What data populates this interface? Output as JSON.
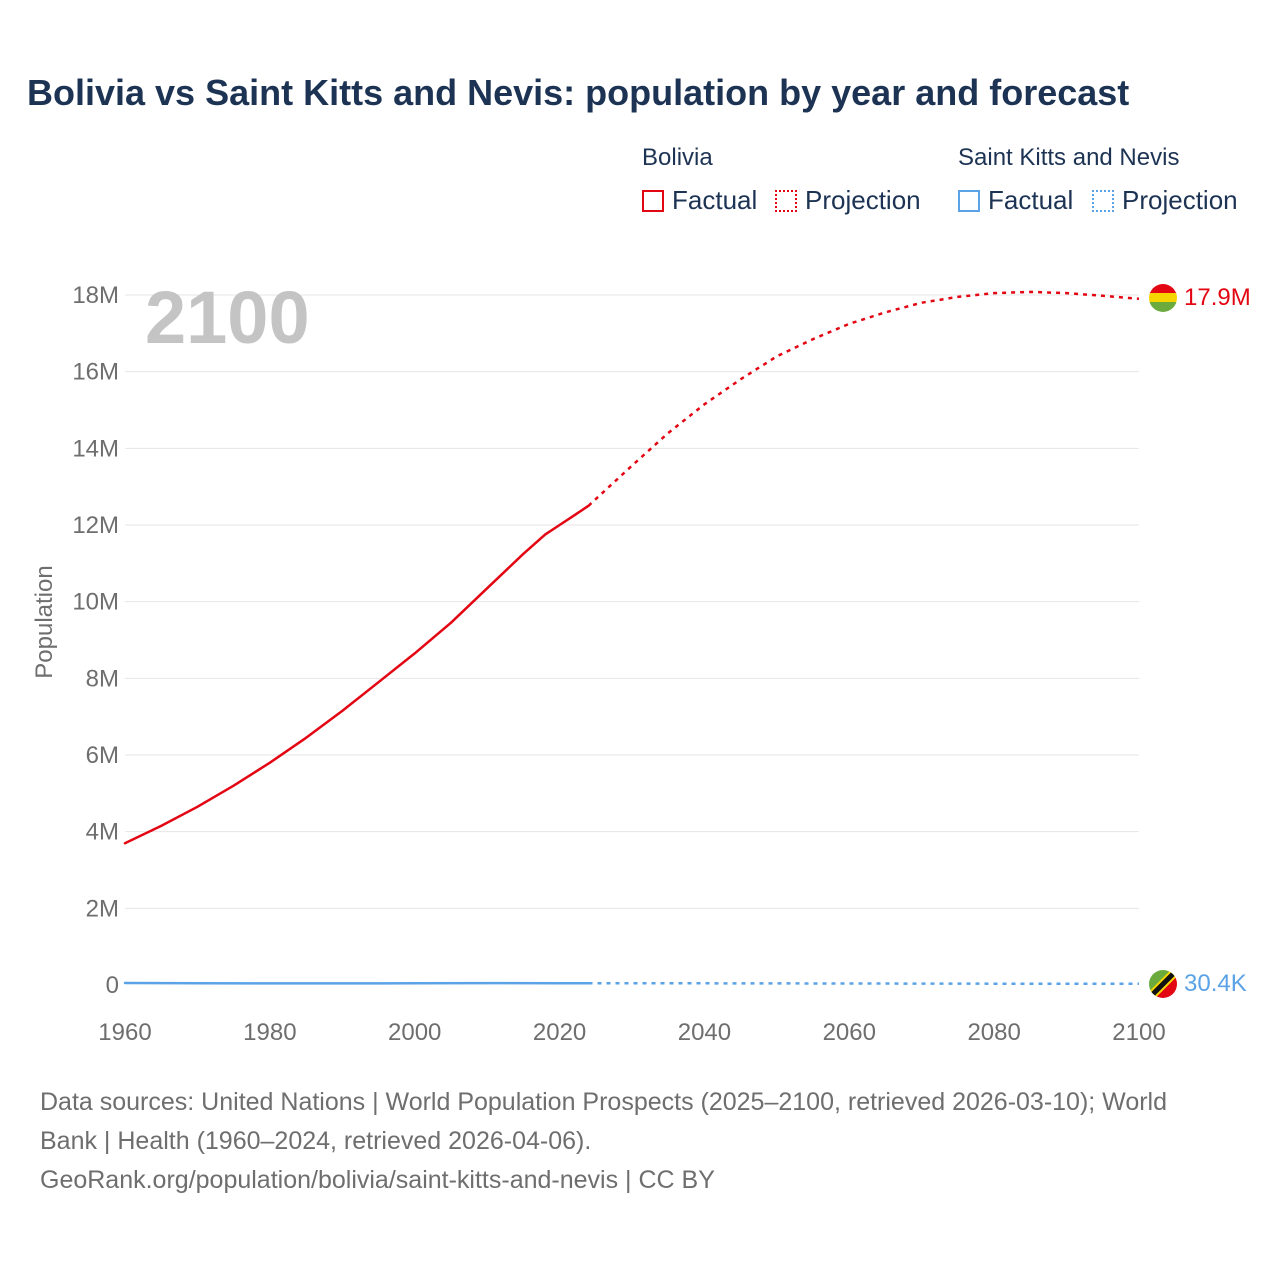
{
  "title": "Bolivia vs Saint Kitts and Nevis: population by year and forecast",
  "legend": {
    "groups": [
      {
        "name": "Bolivia",
        "color": "#e30613",
        "factual_label": "Factual",
        "projection_label": "Projection"
      },
      {
        "name": "Saint Kitts and Nevis",
        "color": "#5ba3e6",
        "factual_label": "Factual",
        "projection_label": "Projection"
      }
    ]
  },
  "year_overlay": "2100",
  "end_labels": {
    "bolivia": "17.9M",
    "skn": "30.4K"
  },
  "flags": {
    "bolivia": "bolivia-flag-icon",
    "skn": "saint-kitts-and-nevis-flag-icon"
  },
  "sources": {
    "line1": "Data sources: United Nations | World Population Prospects (2025–2100, retrieved 2026-03-10); World",
    "line2": "Bank | Health (1960–2024, retrieved 2026-04-06).",
    "line3": "GeoRank.org/population/bolivia/saint-kitts-and-nevis | CC BY"
  },
  "chart_data": {
    "type": "line",
    "title": "Bolivia vs Saint Kitts and Nevis: population by year and forecast",
    "xlabel": "",
    "ylabel": "Population",
    "xlim": [
      1960,
      2100
    ],
    "ylim": [
      0,
      18000000
    ],
    "x_ticks": [
      1960,
      1980,
      2000,
      2020,
      2040,
      2060,
      2080,
      2100
    ],
    "x_tick_labels": [
      "1960",
      "1980",
      "2000",
      "2020",
      "2040",
      "2060",
      "2080",
      "2100"
    ],
    "y_ticks": [
      0,
      2000000,
      4000000,
      6000000,
      8000000,
      10000000,
      12000000,
      14000000,
      16000000,
      18000000
    ],
    "y_tick_labels": [
      "0",
      "2M",
      "4M",
      "6M",
      "8M",
      "10M",
      "12M",
      "14M",
      "16M",
      "18M"
    ],
    "grid": true,
    "series": [
      {
        "name": "Bolivia",
        "segment": "Factual",
        "style": "solid",
        "color": "#e30613",
        "x": [
          1960,
          1965,
          1970,
          1975,
          1980,
          1985,
          1990,
          1995,
          2000,
          2005,
          2010,
          2015,
          2018,
          2020,
          2022,
          2024
        ],
        "values": [
          3700000,
          4150000,
          4650000,
          5200000,
          5800000,
          6450000,
          7150000,
          7900000,
          8650000,
          9450000,
          10350000,
          11250000,
          11750000,
          12000000,
          12250000,
          12500000
        ]
      },
      {
        "name": "Bolivia",
        "segment": "Projection",
        "style": "dotted",
        "color": "#e30613",
        "x": [
          2024,
          2030,
          2035,
          2040,
          2045,
          2050,
          2055,
          2060,
          2065,
          2070,
          2075,
          2080,
          2085,
          2090,
          2095,
          2100
        ],
        "values": [
          12500000,
          13550000,
          14400000,
          15150000,
          15800000,
          16400000,
          16850000,
          17250000,
          17550000,
          17800000,
          17950000,
          18050000,
          18080000,
          18050000,
          17980000,
          17900000
        ]
      },
      {
        "name": "Saint Kitts and Nevis",
        "segment": "Factual",
        "style": "solid",
        "color": "#5ba3e6",
        "x": [
          1960,
          1970,
          1980,
          1990,
          2000,
          2010,
          2020,
          2024
        ],
        "values": [
          51000,
          45000,
          43000,
          41000,
          45000,
          50000,
          47000,
          47000
        ]
      },
      {
        "name": "Saint Kitts and Nevis",
        "segment": "Projection",
        "style": "dotted",
        "color": "#5ba3e6",
        "x": [
          2024,
          2040,
          2060,
          2080,
          2100
        ],
        "values": [
          47000,
          44000,
          40000,
          35000,
          30400
        ]
      }
    ]
  }
}
